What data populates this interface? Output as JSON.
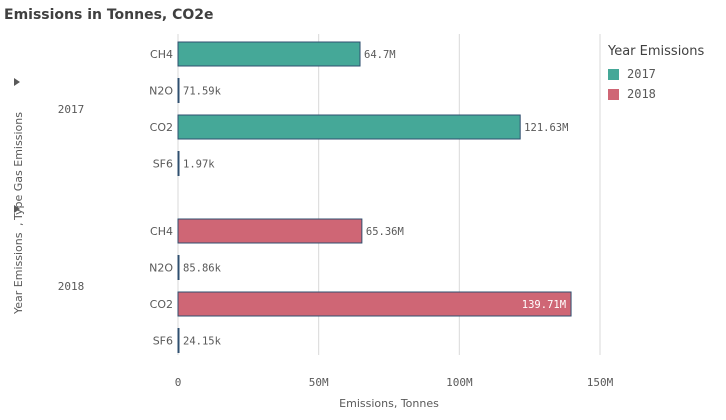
{
  "chart_data": {
    "type": "bar",
    "orientation": "horizontal",
    "title": "Emissions in Tonnes, CO2e",
    "xlabel": "Emissions, Tonnes",
    "ylabel_parts": [
      "Year Emissions",
      "Type Gas Emissions"
    ],
    "xlim": [
      0,
      150000000
    ],
    "xticks": [
      {
        "value": 0,
        "label": "0"
      },
      {
        "value": 50000000,
        "label": "50M"
      },
      {
        "value": 100000000,
        "label": "100M"
      },
      {
        "value": 150000000,
        "label": "150M"
      }
    ],
    "grid": true,
    "legend_title": "Year Emissions",
    "legend_position": "right",
    "groups": [
      {
        "name": "2017",
        "color": "#45a898",
        "bars": [
          {
            "category": "CH4",
            "value": 64700000,
            "label": "64.7M"
          },
          {
            "category": "N2O",
            "value": 71590,
            "label": "71.59k"
          },
          {
            "category": "CO2",
            "value": 121630000,
            "label": "121.63M"
          },
          {
            "category": "SF6",
            "value": 1970,
            "label": "1.97k"
          }
        ]
      },
      {
        "name": "2018",
        "color": "#cf6675",
        "bars": [
          {
            "category": "CH4",
            "value": 65360000,
            "label": "65.36M"
          },
          {
            "category": "N2O",
            "value": 85860,
            "label": "85.86k"
          },
          {
            "category": "CO2",
            "value": 139710000,
            "label": "139.71M"
          },
          {
            "category": "SF6",
            "value": 24150,
            "label": "24.15k"
          }
        ]
      }
    ]
  }
}
